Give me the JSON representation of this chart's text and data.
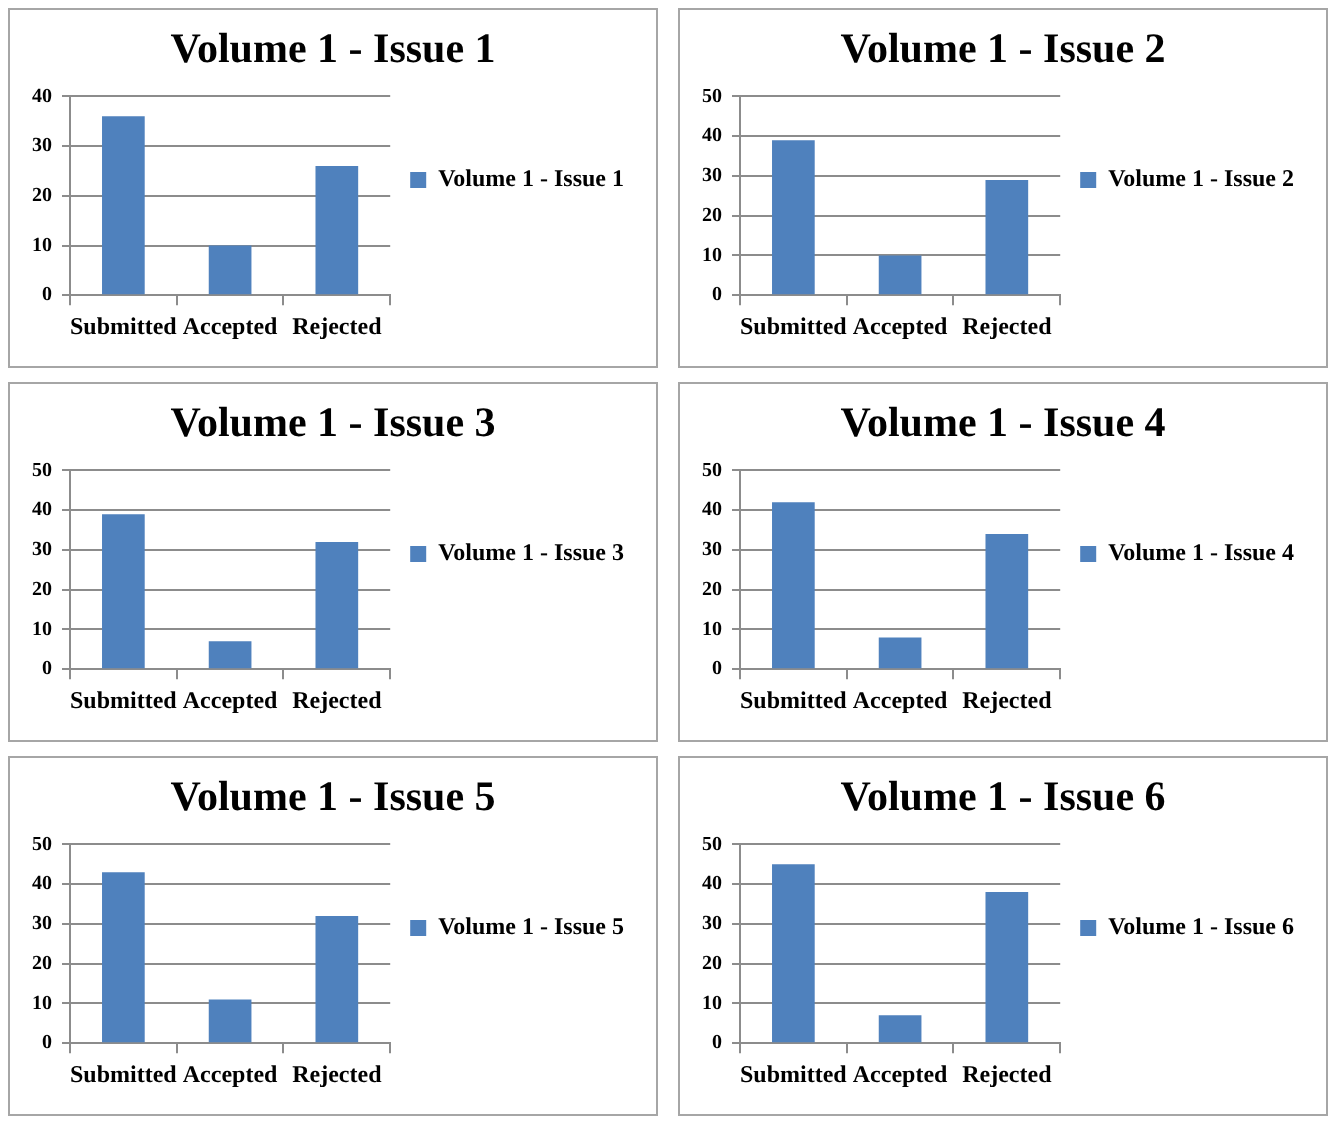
{
  "chart_data": [
    {
      "type": "bar",
      "title": "Volume 1 - Issue 1",
      "categories": [
        "Submitted",
        "Accepted",
        "Rejected"
      ],
      "series": [
        {
          "name": "Volume 1 - Issue 1",
          "color": "#4f81bd",
          "values": [
            36,
            10,
            26
          ]
        }
      ],
      "ylim": [
        0,
        40
      ],
      "yticks": [
        0,
        10,
        20,
        30,
        40
      ],
      "grid": "y",
      "legend": "right"
    },
    {
      "type": "bar",
      "title": "Volume 1 - Issue 2",
      "categories": [
        "Submitted",
        "Accepted",
        "Rejected"
      ],
      "series": [
        {
          "name": "Volume 1 - Issue 2",
          "color": "#4f81bd",
          "values": [
            39,
            10,
            29
          ]
        }
      ],
      "ylim": [
        0,
        50
      ],
      "yticks": [
        0,
        10,
        20,
        30,
        40,
        50
      ],
      "grid": "y",
      "legend": "right"
    },
    {
      "type": "bar",
      "title": "Volume 1 - Issue 3",
      "categories": [
        "Submitted",
        "Accepted",
        "Rejected"
      ],
      "series": [
        {
          "name": "Volume 1 - Issue 3",
          "color": "#4f81bd",
          "values": [
            39,
            7,
            32
          ]
        }
      ],
      "ylim": [
        0,
        50
      ],
      "yticks": [
        0,
        10,
        20,
        30,
        40,
        50
      ],
      "grid": "y",
      "legend": "right"
    },
    {
      "type": "bar",
      "title": "Volume 1 - Issue 4",
      "categories": [
        "Submitted",
        "Accepted",
        "Rejected"
      ],
      "series": [
        {
          "name": "Volume 1 - Issue 4",
          "color": "#4f81bd",
          "values": [
            42,
            8,
            34
          ]
        }
      ],
      "ylim": [
        0,
        50
      ],
      "yticks": [
        0,
        10,
        20,
        30,
        40,
        50
      ],
      "grid": "y",
      "legend": "right"
    },
    {
      "type": "bar",
      "title": "Volume 1 - Issue 5",
      "categories": [
        "Submitted",
        "Accepted",
        "Rejected"
      ],
      "series": [
        {
          "name": "Volume 1 - Issue 5",
          "color": "#4f81bd",
          "values": [
            43,
            11,
            32
          ]
        }
      ],
      "ylim": [
        0,
        50
      ],
      "yticks": [
        0,
        10,
        20,
        30,
        40,
        50
      ],
      "grid": "y",
      "legend": "right"
    },
    {
      "type": "bar",
      "title": "Volume 1 - Issue 6",
      "categories": [
        "Submitted",
        "Accepted",
        "Rejected"
      ],
      "series": [
        {
          "name": "Volume 1 - Issue 6",
          "color": "#4f81bd",
          "values": [
            45,
            7,
            38
          ]
        }
      ],
      "ylim": [
        0,
        50
      ],
      "yticks": [
        0,
        10,
        20,
        30,
        40,
        50
      ],
      "grid": "y",
      "legend": "right"
    }
  ]
}
